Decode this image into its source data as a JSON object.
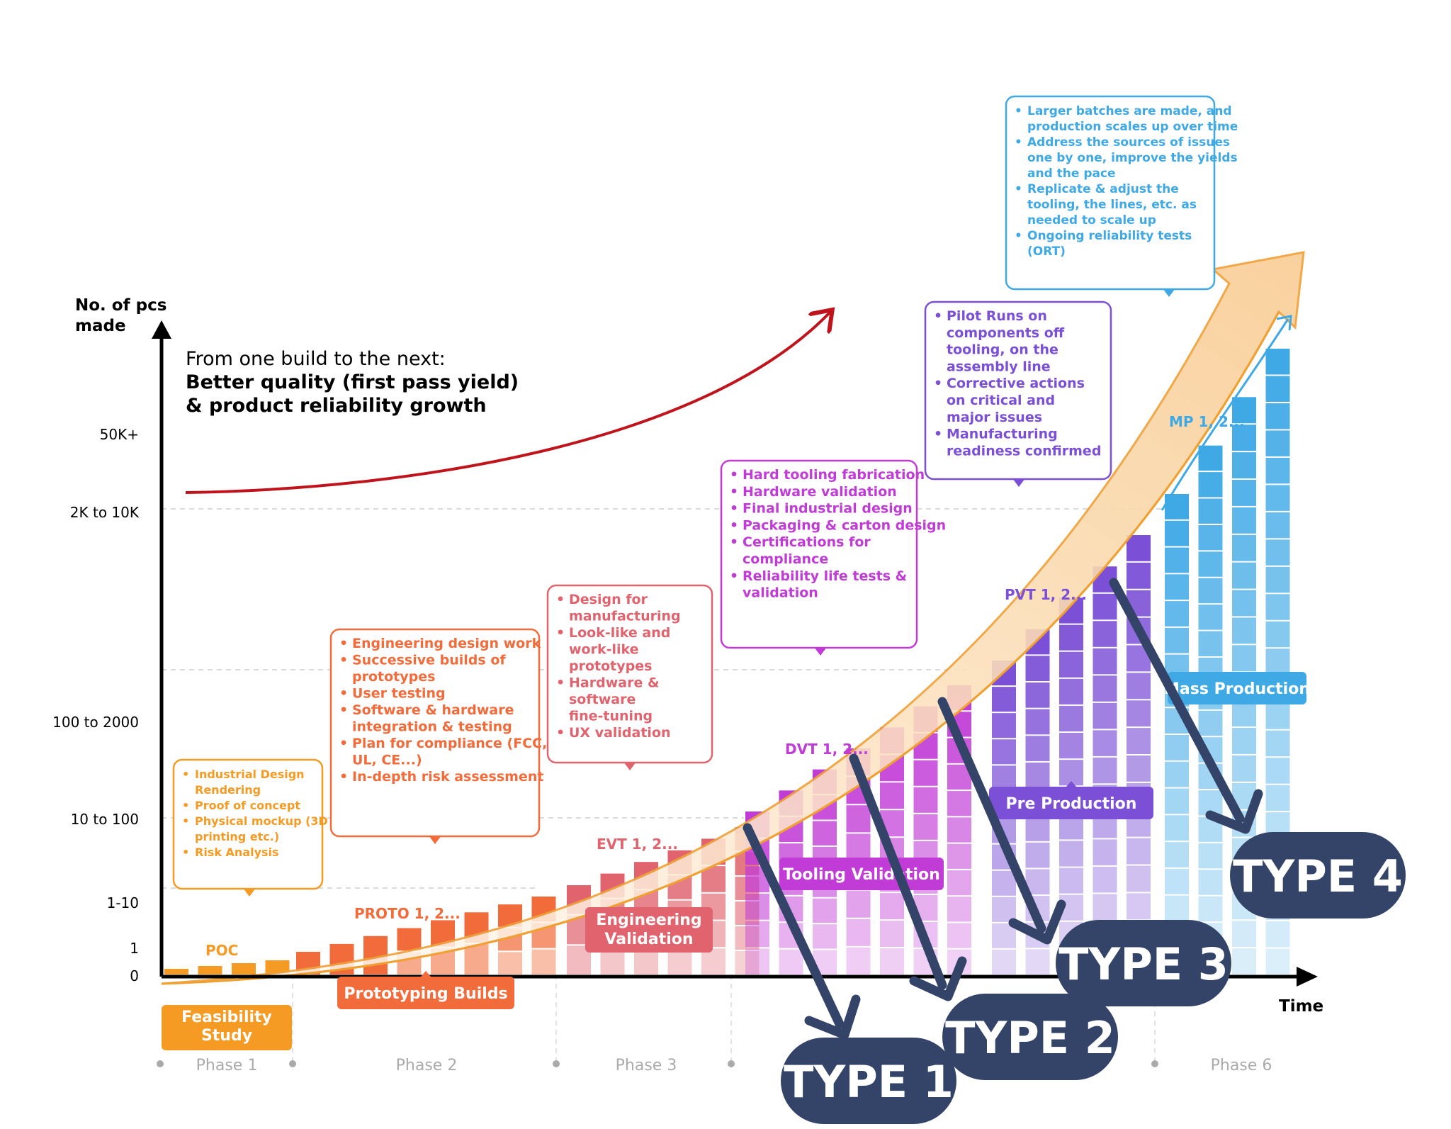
{
  "axes": {
    "y_title_line1": "No. of pcs",
    "y_title_line2": "made",
    "x_title": "Time",
    "y_ticks": [
      "50K+",
      "2K to 10K",
      "100 to 2000",
      "10 to 100",
      "1-10",
      "1",
      "0"
    ]
  },
  "growth_note": {
    "line1": "From one build to the next:",
    "line2": "Better quality (first pass yield)",
    "line3": "& product reliability growth"
  },
  "stages": [
    {
      "name": "Feasibility Study",
      "build": "POC",
      "color": "#F59A23",
      "bullets": [
        "Industrial Design Rendering",
        "Proof of concept",
        "Physical mockup (3D printing etc.)",
        "Risk Analysis"
      ]
    },
    {
      "name": "Prototyping Builds",
      "build": "PROTO 1, 2...",
      "color": "#F26B3A",
      "bullets": [
        "Engineering design work",
        "Successive builds of prototypes",
        "User testing",
        "Software & hardware integration & testing",
        "Plan for compliance (FCC, UL, CE...)",
        "In-depth risk assessment"
      ]
    },
    {
      "name": "Engineering Validation",
      "build": "EVT 1, 2...",
      "color": "#E0636E",
      "bullets": [
        "Design for manufacturing",
        "Look-like and work-like prototypes",
        "Hardware & software fine-tuning",
        "UX validation"
      ]
    },
    {
      "name": "Tooling Validation",
      "build": "DVT 1, 2...",
      "color": "#C13BD6",
      "bullets": [
        "Hard tooling fabrication",
        "Hardware validation",
        "Final industrial design",
        "Packaging & carton design",
        "Certifications for compliance",
        "Reliability life tests & validation"
      ]
    },
    {
      "name": "Pre Production",
      "build": "PVT 1, 2...",
      "color": "#7B4FD6",
      "bullets": [
        "Pilot Runs on components off tooling, on the assembly line",
        "Corrective actions on critical and major issues",
        "Manufacturing readiness confirmed"
      ]
    },
    {
      "name": "Mass Production",
      "build": "MP 1, 2...",
      "color": "#3FA9E6",
      "bullets": [
        "Larger batches are made, and production scales up over time",
        "Address the sources of issues one by one, improve the yields and the pace",
        "Replicate & adjust the tooling, the lines, etc. as needed to scale up",
        "Ongoing reliability tests (ORT)"
      ]
    }
  ],
  "phases": [
    "Phase 1",
    "Phase 2",
    "Phase 3",
    "Phase 6"
  ],
  "types": [
    "TYPE 1",
    "TYPE 2",
    "TYPE 3",
    "TYPE 4"
  ],
  "colors": {
    "axis": "#000000",
    "growth_arrow": "#C0141C",
    "type_badge": "#344468",
    "big_arrow_fill": "#FAD9B0",
    "big_arrow_edge": "#F0A030"
  }
}
